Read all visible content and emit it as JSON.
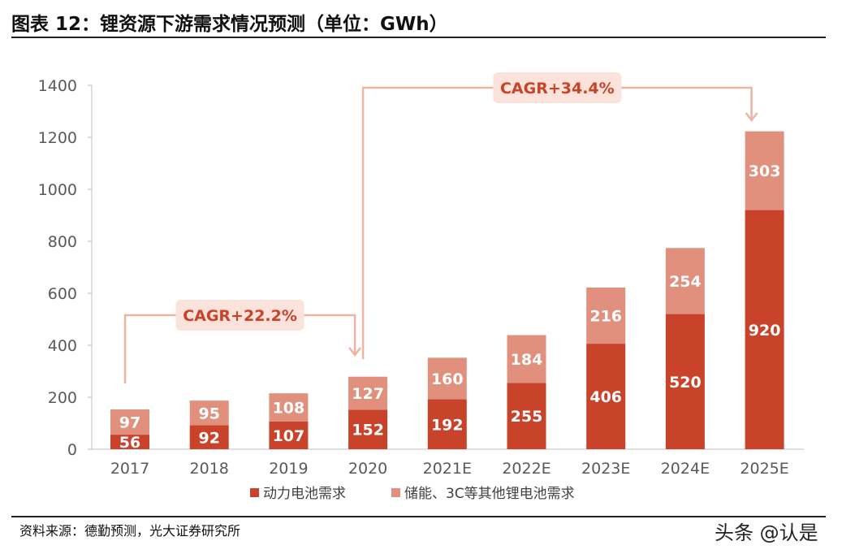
{
  "header": {
    "title": "图表 12：锂资源下游需求情况预测（单位：GWh）"
  },
  "footer": {
    "source": "资料来源：德勤预测，光大证券研究所",
    "watermark": "头条 @认是"
  },
  "colors": {
    "power": "#C9432A",
    "other": "#E0907C",
    "annotation_line": "#EEB3A3",
    "annotation_box": "#FBE3DC",
    "annotation_text": "#C9432A",
    "axis": "#BFBFBF",
    "tick_text": "#595959"
  },
  "chart_data": {
    "type": "bar",
    "stacked": true,
    "title": "",
    "xlabel": "",
    "ylabel": "",
    "ylim": [
      0,
      1400
    ],
    "yticks": [
      0,
      200,
      400,
      600,
      800,
      1000,
      1200,
      1400
    ],
    "grid": false,
    "legend_position": "bottom",
    "categories": [
      "2017",
      "2018",
      "2019",
      "2020",
      "2021E",
      "2022E",
      "2023E",
      "2024E",
      "2025E"
    ],
    "series": [
      {
        "name": "动力电池需求",
        "values": [
          56,
          92,
          107,
          152,
          192,
          255,
          406,
          520,
          920
        ]
      },
      {
        "name": "储能、3C等其他锂电池需求",
        "values": [
          97,
          95,
          108,
          127,
          160,
          184,
          216,
          254,
          303
        ]
      }
    ],
    "annotations": [
      {
        "text": "CAGR+22.2%",
        "from": "2017",
        "to": "2020"
      },
      {
        "text": "CAGR+34.4%",
        "from": "2020",
        "to": "2025E"
      }
    ]
  }
}
